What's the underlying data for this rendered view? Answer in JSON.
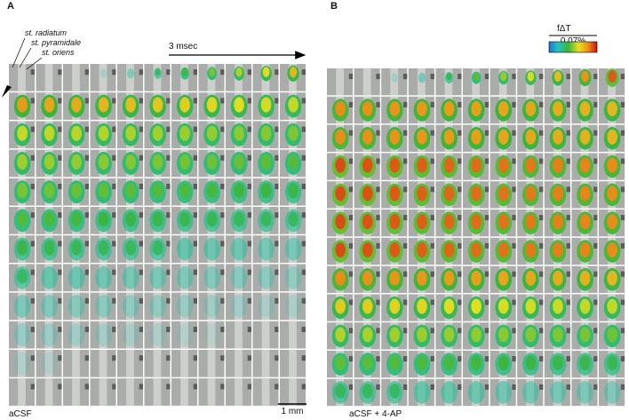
{
  "panels": [
    {
      "label": "A",
      "layers": [
        "st. radiatum",
        "st. pyramidale",
        "st. oriens"
      ],
      "time_label": "3 msec",
      "condition": "aCSF",
      "scale_label": "1 mm"
    },
    {
      "label": "B",
      "colorbar_title": "fΔT",
      "colorbar_label": "0.07%",
      "condition": "aCSF + 4-AP"
    }
  ]
}
